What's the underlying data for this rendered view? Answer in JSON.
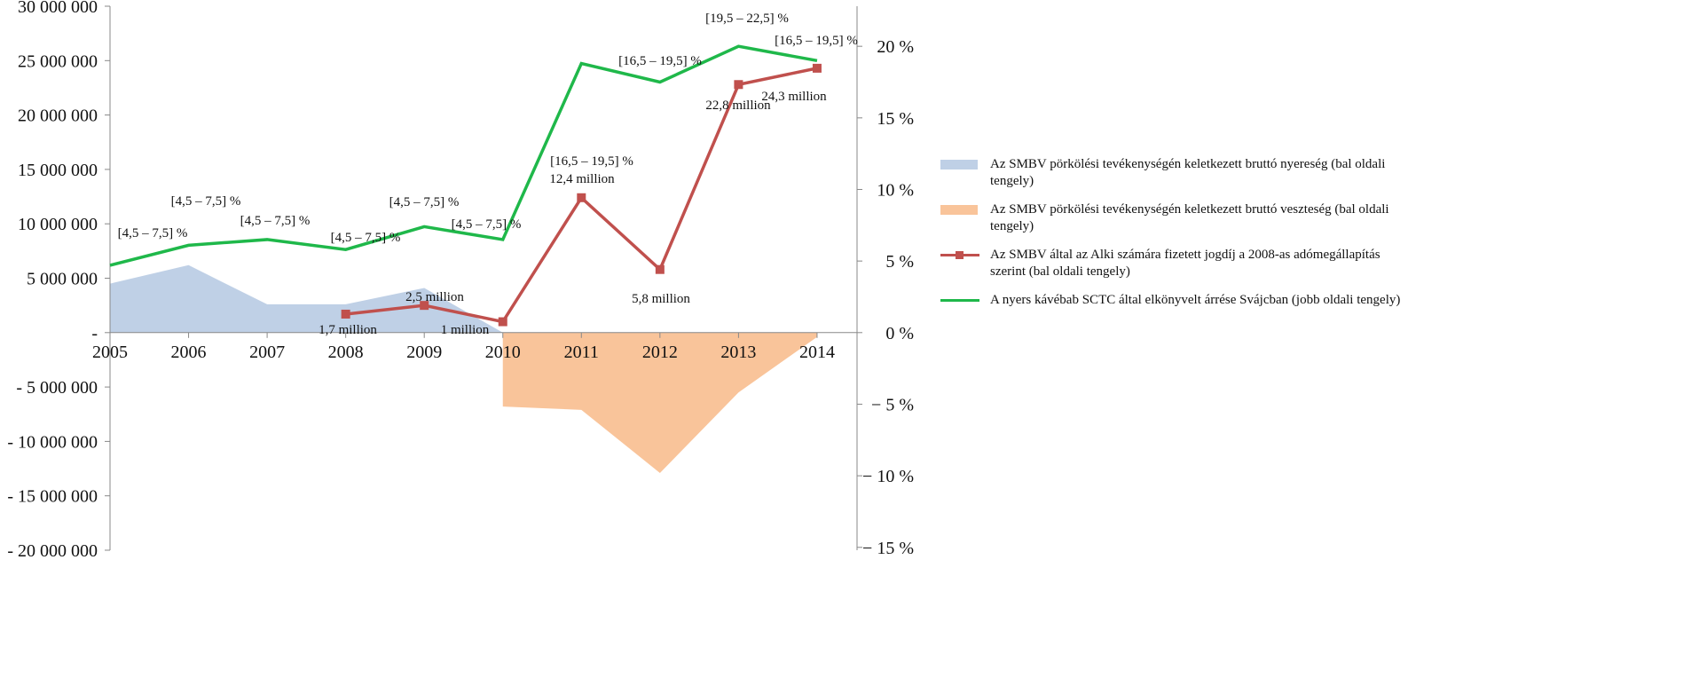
{
  "chart_data": {
    "type": "area+line",
    "categories": [
      "2005",
      "2006",
      "2007",
      "2008",
      "2009",
      "2010",
      "2011",
      "2012",
      "2013",
      "2014"
    ],
    "left_axis": {
      "ylim": [
        -20000000,
        30000000
      ],
      "ticks": [
        30000000,
        25000000,
        20000000,
        15000000,
        10000000,
        5000000,
        0,
        -5000000,
        -10000000,
        -15000000,
        -20000000
      ],
      "tick_labels": [
        "30 000 000",
        "25 000 000",
        "20 000 000",
        "15 000 000",
        "10 000 000",
        "5 000 000",
        "-",
        "- 5 000 000",
        "- 10 000 000",
        "- 15 000 000",
        "- 20 000 000"
      ]
    },
    "right_axis": {
      "ylim": [
        -15.2,
        22.8
      ],
      "ticks": [
        20,
        15,
        10,
        5,
        0,
        -5,
        -10,
        -15
      ],
      "tick_labels": [
        "20 %",
        "15 %",
        "10 %",
        "5 %",
        "0 %",
        "− 5 %",
        "− 10 %",
        "− 15 %"
      ]
    },
    "series": [
      {
        "name": "Az SMBV pörkölési tevékenységén keletkezett bruttó nyereség (bal oldali tengely)",
        "type": "area",
        "axis": "left",
        "color": "#bfd0e6",
        "values": [
          4500000,
          6200000,
          2600000,
          2600000,
          4100000,
          0,
          0,
          0,
          0,
          0
        ]
      },
      {
        "name": "Az SMBV pörkölési tevékenységén keletkezett bruttó veszteség (bal oldali tengely)",
        "type": "area",
        "axis": "left",
        "color": "#f9c49a",
        "values": [
          null,
          null,
          null,
          null,
          null,
          -6800000,
          -7100000,
          -12900000,
          -5500000,
          -400000
        ]
      },
      {
        "name": "Az SMBV által az Alki számára fizetett jogdíj a 2008-as adómegállapítás szerint (bal oldali tengely)",
        "type": "line",
        "axis": "left",
        "color": "#c0504d",
        "values": [
          null,
          null,
          null,
          1700000,
          2500000,
          1000000,
          12400000,
          5800000,
          22800000,
          24300000
        ],
        "data_labels": [
          null,
          null,
          null,
          "1,7 million",
          "2,5 million",
          "1 million",
          "12,4 million",
          "5,8 million",
          "22,8 million",
          "24,3 million"
        ]
      },
      {
        "name": "A nyers kávébab SCTC által elkönyvelt árrése Svájcban (jobb oldali tengely)",
        "type": "line",
        "axis": "right",
        "color": "#1fb84a",
        "values": [
          4.7,
          6.1,
          6.5,
          5.8,
          7.4,
          6.5,
          18.8,
          17.5,
          20.0,
          19.0
        ],
        "data_labels": [
          "[4,5 – 7,5] %",
          "[4,5 – 7,5] %",
          "[4,5 – 7,5] %",
          "[4,5 – 7,5] %",
          "[4,5 – 7,5] %",
          "[4,5 – 7,5] %",
          "[16,5 – 19,5] %",
          "[16,5 – 19,5] %",
          "[19,5 – 22,5] %",
          "[16,5 – 19,5] %"
        ]
      }
    ],
    "legend_position": "right",
    "grid": false
  }
}
